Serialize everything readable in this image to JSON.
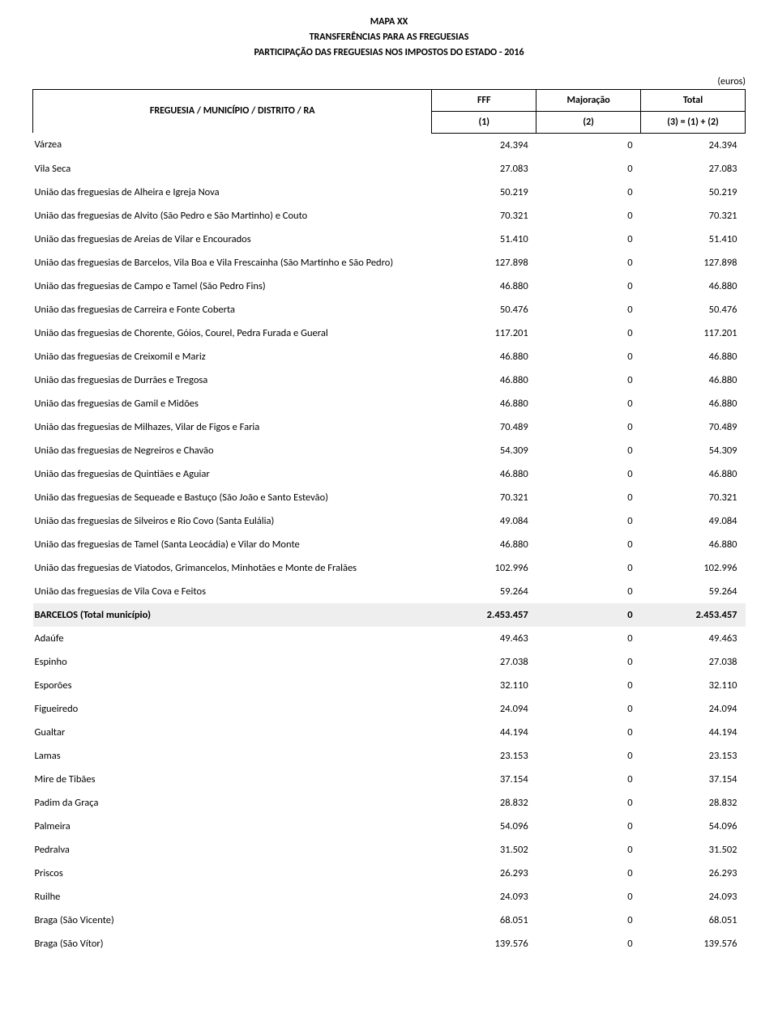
{
  "header": {
    "line1": "MAPA XX",
    "line2": "TRANSFERÊNCIAS PARA AS FREGUESIAS",
    "line3": "PARTICIPAÇÃO DAS FREGUESIAS NOS IMPOSTOS DO ESTADO - 2016"
  },
  "unit_label": "(euros)",
  "columns": {
    "name": "FREGUESIA / MUNICÍPIO / DISTRITO / RA",
    "fff": "FFF",
    "maj": "Majoração",
    "total": "Total",
    "sub1": "(1)",
    "sub2": "(2)",
    "sub3": "(3) = (1) + (2)"
  },
  "rows": [
    {
      "name": "Várzea",
      "fff": "24.394",
      "maj": "0",
      "total": "24.394",
      "total_row": false
    },
    {
      "name": "Vila Seca",
      "fff": "27.083",
      "maj": "0",
      "total": "27.083",
      "total_row": false
    },
    {
      "name": "União das freguesias de Alheira e Igreja Nova",
      "fff": "50.219",
      "maj": "0",
      "total": "50.219",
      "total_row": false
    },
    {
      "name": "União das freguesias de Alvito (São Pedro e São Martinho) e Couto",
      "fff": "70.321",
      "maj": "0",
      "total": "70.321",
      "total_row": false
    },
    {
      "name": "União das freguesias de Areias de Vilar e Encourados",
      "fff": "51.410",
      "maj": "0",
      "total": "51.410",
      "total_row": false
    },
    {
      "name": "União das freguesias de Barcelos, Vila Boa e Vila Frescainha (São Martinho e São Pedro)",
      "fff": "127.898",
      "maj": "0",
      "total": "127.898",
      "total_row": false
    },
    {
      "name": "União das freguesias de Campo e Tamel (São Pedro Fins)",
      "fff": "46.880",
      "maj": "0",
      "total": "46.880",
      "total_row": false
    },
    {
      "name": "União das freguesias de Carreira e Fonte Coberta",
      "fff": "50.476",
      "maj": "0",
      "total": "50.476",
      "total_row": false
    },
    {
      "name": "União das freguesias de Chorente, Góios, Courel, Pedra Furada e Gueral",
      "fff": "117.201",
      "maj": "0",
      "total": "117.201",
      "total_row": false
    },
    {
      "name": "União das freguesias de Creixomil e Mariz",
      "fff": "46.880",
      "maj": "0",
      "total": "46.880",
      "total_row": false
    },
    {
      "name": "União das freguesias de Durrães e Tregosa",
      "fff": "46.880",
      "maj": "0",
      "total": "46.880",
      "total_row": false
    },
    {
      "name": "União das freguesias de Gamil e Midões",
      "fff": "46.880",
      "maj": "0",
      "total": "46.880",
      "total_row": false
    },
    {
      "name": "União das freguesias de Milhazes, Vilar de Figos e Faria",
      "fff": "70.489",
      "maj": "0",
      "total": "70.489",
      "total_row": false
    },
    {
      "name": "União das freguesias de Negreiros e Chavão",
      "fff": "54.309",
      "maj": "0",
      "total": "54.309",
      "total_row": false
    },
    {
      "name": "União das freguesias de Quintiães e Aguiar",
      "fff": "46.880",
      "maj": "0",
      "total": "46.880",
      "total_row": false
    },
    {
      "name": "União das freguesias de Sequeade e Bastuço (São João e Santo Estevão)",
      "fff": "70.321",
      "maj": "0",
      "total": "70.321",
      "total_row": false
    },
    {
      "name": "União das freguesias de Silveiros e Rio Covo (Santa Eulália)",
      "fff": "49.084",
      "maj": "0",
      "total": "49.084",
      "total_row": false
    },
    {
      "name": "União das freguesias de Tamel (Santa Leocádia) e Vilar do Monte",
      "fff": "46.880",
      "maj": "0",
      "total": "46.880",
      "total_row": false
    },
    {
      "name": "União das freguesias de Viatodos, Grimancelos, Minhotães e Monte de Fralães",
      "fff": "102.996",
      "maj": "0",
      "total": "102.996",
      "total_row": false
    },
    {
      "name": "União das freguesias de Vila Cova e Feitos",
      "fff": "59.264",
      "maj": "0",
      "total": "59.264",
      "total_row": false
    },
    {
      "name": "BARCELOS (Total município)",
      "fff": "2.453.457",
      "maj": "0",
      "total": "2.453.457",
      "total_row": true
    },
    {
      "name": "Adaúfe",
      "fff": "49.463",
      "maj": "0",
      "total": "49.463",
      "total_row": false
    },
    {
      "name": "Espinho",
      "fff": "27.038",
      "maj": "0",
      "total": "27.038",
      "total_row": false
    },
    {
      "name": "Esporões",
      "fff": "32.110",
      "maj": "0",
      "total": "32.110",
      "total_row": false
    },
    {
      "name": "Figueiredo",
      "fff": "24.094",
      "maj": "0",
      "total": "24.094",
      "total_row": false
    },
    {
      "name": "Gualtar",
      "fff": "44.194",
      "maj": "0",
      "total": "44.194",
      "total_row": false
    },
    {
      "name": "Lamas",
      "fff": "23.153",
      "maj": "0",
      "total": "23.153",
      "total_row": false
    },
    {
      "name": "Mire de Tibães",
      "fff": "37.154",
      "maj": "0",
      "total": "37.154",
      "total_row": false
    },
    {
      "name": "Padim da Graça",
      "fff": "28.832",
      "maj": "0",
      "total": "28.832",
      "total_row": false
    },
    {
      "name": "Palmeira",
      "fff": "54.096",
      "maj": "0",
      "total": "54.096",
      "total_row": false
    },
    {
      "name": "Pedralva",
      "fff": "31.502",
      "maj": "0",
      "total": "31.502",
      "total_row": false
    },
    {
      "name": "Priscos",
      "fff": "26.293",
      "maj": "0",
      "total": "26.293",
      "total_row": false
    },
    {
      "name": "Ruilhe",
      "fff": "24.093",
      "maj": "0",
      "total": "24.093",
      "total_row": false
    },
    {
      "name": "Braga (São Vicente)",
      "fff": "68.051",
      "maj": "0",
      "total": "68.051",
      "total_row": false
    },
    {
      "name": "Braga (São Vítor)",
      "fff": "139.576",
      "maj": "0",
      "total": "139.576",
      "total_row": false
    }
  ]
}
